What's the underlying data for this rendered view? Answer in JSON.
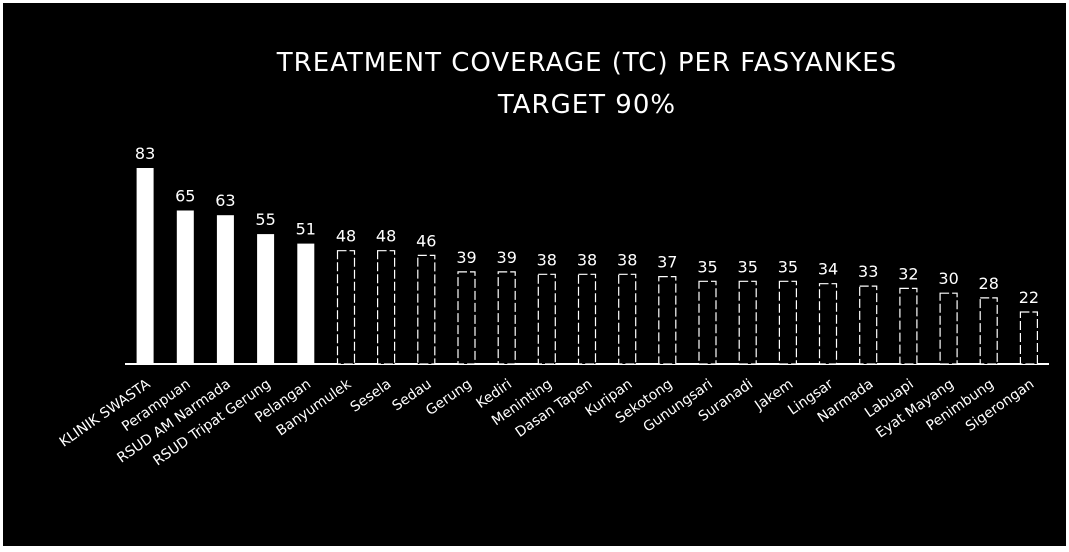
{
  "chart_data": {
    "type": "bar",
    "title": "TREATMENT COVERAGE (TC) PER FASYANKES",
    "subtitle": "TARGET 90%",
    "xlabel": "",
    "ylabel": "",
    "ylim": [
      0,
      100
    ],
    "grid": false,
    "legend": "none",
    "categories": [
      "KLINIK SWASTA",
      "Perampuan",
      "RSUD AM Narmada",
      "RSUD Tripat Gerung",
      "Pelangan",
      "Banyumulek",
      "Sesela",
      "Sedau",
      "Gerung",
      "Kediri",
      "Meninting",
      "Dasan Tapen",
      "Kuripan",
      "Sekotong",
      "Gunungsari",
      "Suranadi",
      "Jakem",
      "Lingsar",
      "Narmada",
      "Labuapi",
      "Eyat Mayang",
      "Penimbung",
      "Sigerongan"
    ],
    "values": [
      83,
      65,
      63,
      55,
      51,
      48,
      48,
      46,
      39,
      39,
      38,
      38,
      38,
      37,
      35,
      35,
      35,
      34,
      33,
      32,
      30,
      28,
      22
    ],
    "solid_bar_count": 5,
    "colors": {
      "background": "#000000",
      "bar": "#ffffff",
      "text": "#ffffff"
    }
  }
}
